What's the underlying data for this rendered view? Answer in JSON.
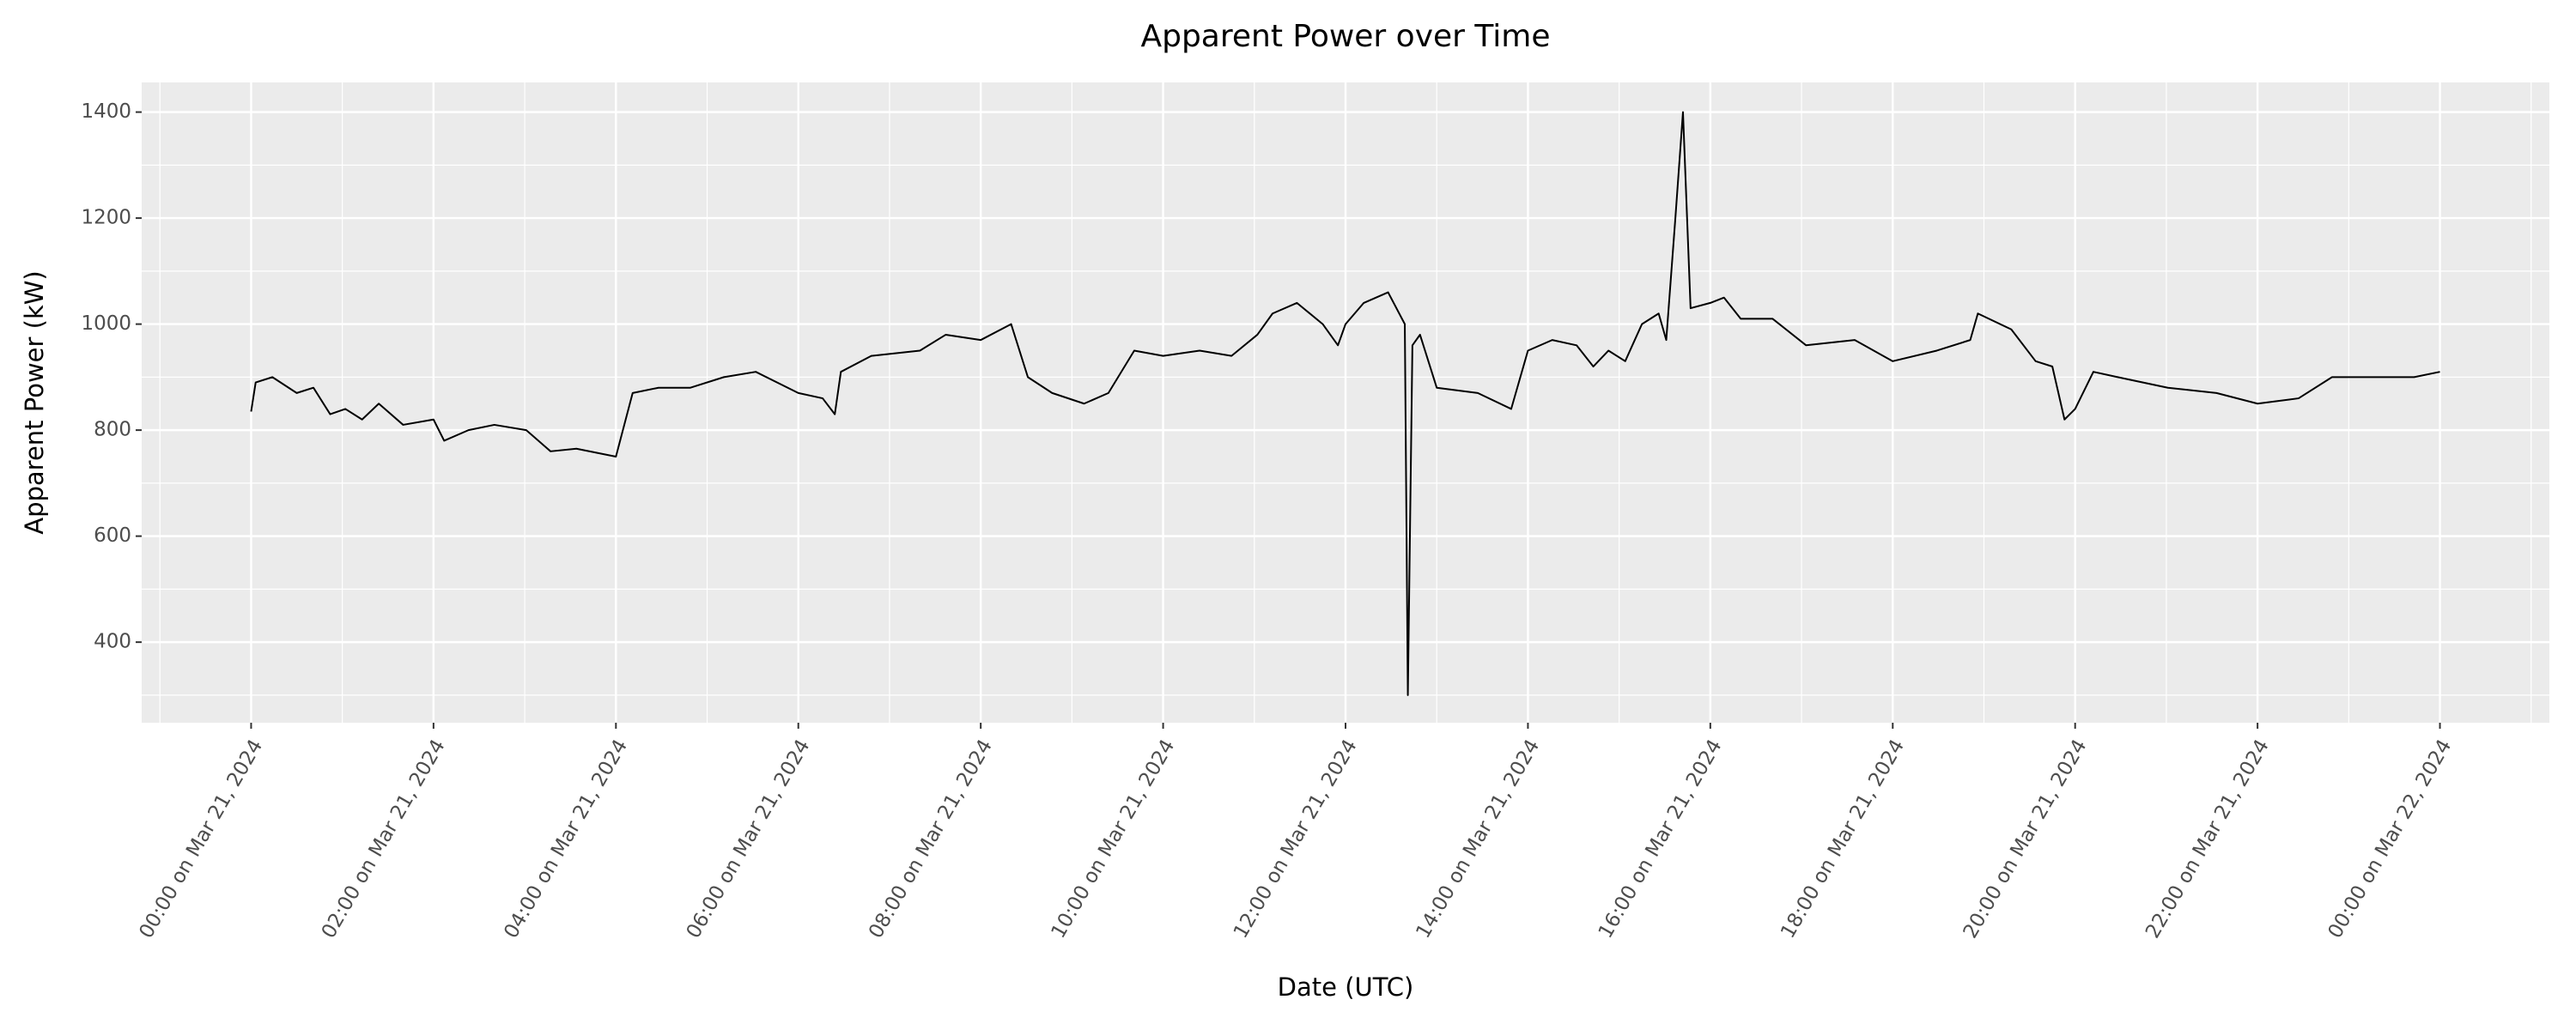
{
  "chart_data": {
    "type": "line",
    "title": "Apparent Power over Time",
    "x_label": "Date (UTC)",
    "y_label": "Apparent Power (kW)",
    "color": "#000000",
    "grid": true,
    "x": [
      "2024-03-21T00:00",
      "2024-03-21T00:03",
      "2024-03-21T00:14",
      "2024-03-21T00:30",
      "2024-03-21T00:41",
      "2024-03-21T00:52",
      "2024-03-21T01:02",
      "2024-03-21T01:13",
      "2024-03-21T01:24",
      "2024-03-21T01:40",
      "2024-03-21T02:00",
      "2024-03-21T02:07",
      "2024-03-21T02:23",
      "2024-03-21T02:40",
      "2024-03-21T03:01",
      "2024-03-21T03:17",
      "2024-03-21T03:34",
      "2024-03-21T04:00",
      "2024-03-21T04:11",
      "2024-03-21T04:28",
      "2024-03-21T04:49",
      "2024-03-21T05:11",
      "2024-03-21T05:32",
      "2024-03-21T06:00",
      "2024-03-21T06:16",
      "2024-03-21T06:24",
      "2024-03-21T06:28",
      "2024-03-21T06:48",
      "2024-03-21T07:20",
      "2024-03-21T07:37",
      "2024-03-21T08:00",
      "2024-03-21T08:20",
      "2024-03-21T08:31",
      "2024-03-21T08:47",
      "2024-03-21T09:08",
      "2024-03-21T09:24",
      "2024-03-21T09:41",
      "2024-03-21T10:00",
      "2024-03-21T10:24",
      "2024-03-21T10:45",
      "2024-03-21T11:02",
      "2024-03-21T11:12",
      "2024-03-21T11:28",
      "2024-03-21T11:45",
      "2024-03-21T11:55",
      "2024-03-21T12:00",
      "2024-03-21T12:12",
      "2024-03-21T12:28",
      "2024-03-21T12:39",
      "2024-03-21T12:41",
      "2024-03-21T12:44",
      "2024-03-21T12:49",
      "2024-03-21T13:00",
      "2024-03-21T13:27",
      "2024-03-21T13:49",
      "2024-03-21T14:00",
      "2024-03-21T14:16",
      "2024-03-21T14:32",
      "2024-03-21T14:43",
      "2024-03-21T14:53",
      "2024-03-21T15:04",
      "2024-03-21T15:15",
      "2024-03-21T15:26",
      "2024-03-21T15:31",
      "2024-03-21T15:37",
      "2024-03-21T15:42",
      "2024-03-21T15:47",
      "2024-03-21T16:00",
      "2024-03-21T16:09",
      "2024-03-21T16:20",
      "2024-03-21T16:41",
      "2024-03-21T17:03",
      "2024-03-21T17:35",
      "2024-03-21T18:00",
      "2024-03-21T18:29",
      "2024-03-21T18:51",
      "2024-03-21T18:56",
      "2024-03-21T19:18",
      "2024-03-21T19:34",
      "2024-03-21T19:45",
      "2024-03-21T19:53",
      "2024-03-21T20:00",
      "2024-03-21T20:12",
      "2024-03-21T20:28",
      "2024-03-21T21:01",
      "2024-03-21T21:33",
      "2024-03-21T22:00",
      "2024-03-21T22:27",
      "2024-03-21T22:49",
      "2024-03-21T23:10",
      "2024-03-21T23:43",
      "2024-03-22T00:00"
    ],
    "values": [
      835,
      890,
      900,
      870,
      880,
      830,
      840,
      820,
      850,
      810,
      820,
      780,
      800,
      810,
      800,
      760,
      765,
      750,
      870,
      880,
      880,
      900,
      910,
      870,
      860,
      830,
      910,
      940,
      950,
      980,
      970,
      1000,
      900,
      870,
      850,
      870,
      950,
      940,
      950,
      940,
      980,
      1020,
      1040,
      1000,
      960,
      1000,
      1040,
      1060,
      1000,
      300,
      960,
      980,
      880,
      870,
      840,
      950,
      970,
      960,
      920,
      950,
      930,
      1000,
      1020,
      970,
      1200,
      1400,
      1030,
      1040,
      1050,
      1010,
      1010,
      960,
      970,
      930,
      950,
      970,
      1020,
      990,
      930,
      920,
      820,
      840,
      910,
      900,
      880,
      870,
      850,
      860,
      900,
      900,
      900,
      910
    ],
    "xlim": [
      "2024-03-20T22:48",
      "2024-03-22T01:12"
    ],
    "xticks": [
      {
        "value": "2024-03-21T00:00",
        "label": "00:00 on Mar 21, 2024"
      },
      {
        "value": "2024-03-21T02:00",
        "label": "02:00 on Mar 21, 2024"
      },
      {
        "value": "2024-03-21T04:00",
        "label": "04:00 on Mar 21, 2024"
      },
      {
        "value": "2024-03-21T06:00",
        "label": "06:00 on Mar 21, 2024"
      },
      {
        "value": "2024-03-21T08:00",
        "label": "08:00 on Mar 21, 2024"
      },
      {
        "value": "2024-03-21T10:00",
        "label": "10:00 on Mar 21, 2024"
      },
      {
        "value": "2024-03-21T12:00",
        "label": "12:00 on Mar 21, 2024"
      },
      {
        "value": "2024-03-21T14:00",
        "label": "14:00 on Mar 21, 2024"
      },
      {
        "value": "2024-03-21T16:00",
        "label": "16:00 on Mar 21, 2024"
      },
      {
        "value": "2024-03-21T18:00",
        "label": "18:00 on Mar 21, 2024"
      },
      {
        "value": "2024-03-21T20:00",
        "label": "20:00 on Mar 21, 2024"
      },
      {
        "value": "2024-03-21T22:00",
        "label": "22:00 on Mar 21, 2024"
      },
      {
        "value": "2024-03-22T00:00",
        "label": "00:00 on Mar 22, 2024"
      }
    ],
    "ylim": [
      248,
      1456
    ],
    "yticks": [
      400,
      600,
      800,
      1000,
      1200,
      1400
    ]
  }
}
